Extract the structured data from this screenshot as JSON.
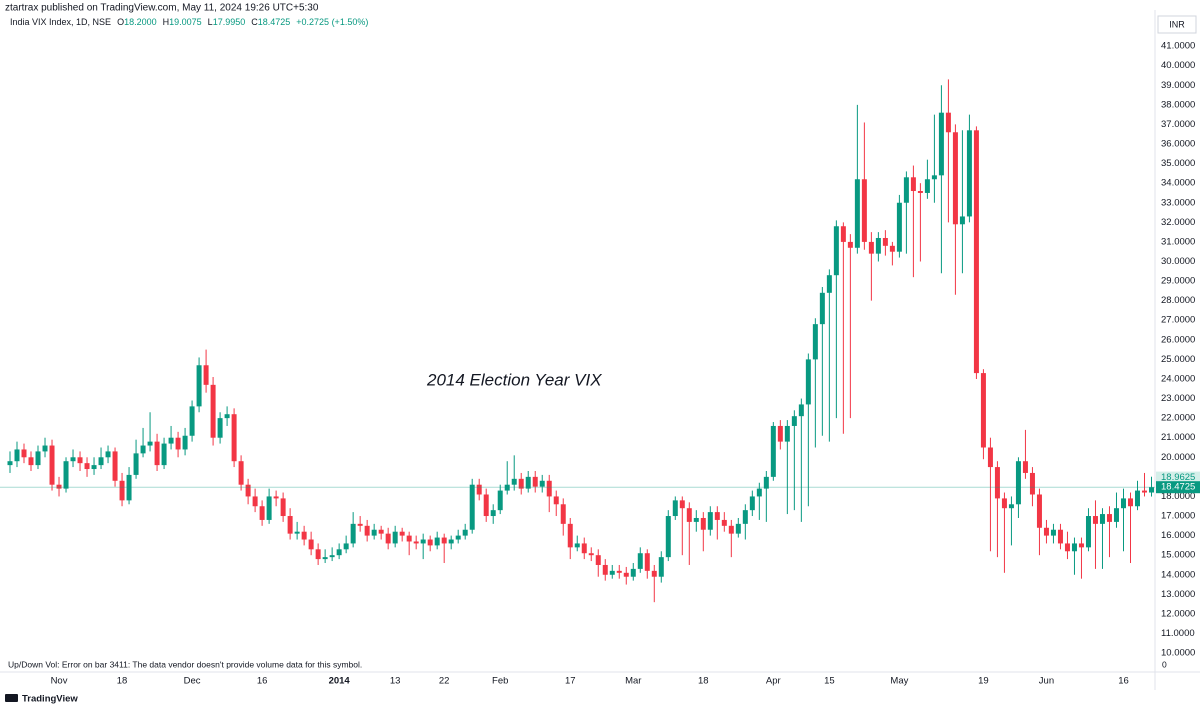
{
  "header": {
    "published": "ztartrax published on TradingView.com, May 11, 2024 19:26 UTC+5:30",
    "symbol": "India VIX Index, 1D, NSE",
    "open_label": "O",
    "open": "18.2000",
    "high_label": "H",
    "high": "19.0075",
    "low_label": "L",
    "low": "17.9950",
    "close_label": "C",
    "close": "18.4725",
    "change": "+0.2725 (+1.50%)",
    "currency": "INR"
  },
  "volume_note": "Up/Down Vol: Error on bar 3411: The data vendor doesn't provide volume data for this symbol.",
  "volume_value": "0",
  "brand": "TradingView",
  "chart_data": {
    "type": "candlestick",
    "annotation": "2014 Election Year VIX",
    "up_color": "#089981",
    "down_color": "#f23645",
    "grid": false,
    "ylim": [
      9.8,
      42.64
    ],
    "yticks": [
      {
        "value": 10,
        "label": "10.0000"
      },
      {
        "value": 11,
        "label": "11.0000"
      },
      {
        "value": 12,
        "label": "12.0000"
      },
      {
        "value": 13,
        "label": "13.0000"
      },
      {
        "value": 14,
        "label": "14.0000"
      },
      {
        "value": 15,
        "label": "15.0000"
      },
      {
        "value": 16,
        "label": "16.0000"
      },
      {
        "value": 17,
        "label": "17.0000"
      },
      {
        "value": 18,
        "label": "18.0000"
      },
      {
        "value": 19,
        "label": "19.0000"
      },
      {
        "value": 20,
        "label": "20.0000"
      },
      {
        "value": 21,
        "label": "21.0000"
      },
      {
        "value": 22,
        "label": "22.0000"
      },
      {
        "value": 23,
        "label": "23.0000"
      },
      {
        "value": 24,
        "label": "24.0000"
      },
      {
        "value": 25,
        "label": "25.0000"
      },
      {
        "value": 26,
        "label": "26.0000"
      },
      {
        "value": 27,
        "label": "27.0000"
      },
      {
        "value": 28,
        "label": "28.0000"
      },
      {
        "value": 29,
        "label": "29.0000"
      },
      {
        "value": 30,
        "label": "30.0000"
      },
      {
        "value": 31,
        "label": "31.0000"
      },
      {
        "value": 32,
        "label": "32.0000"
      },
      {
        "value": 33,
        "label": "33.0000"
      },
      {
        "value": 34,
        "label": "34.0000"
      },
      {
        "value": 35,
        "label": "35.0000"
      },
      {
        "value": 36,
        "label": "36.0000"
      },
      {
        "value": 37,
        "label": "37.0000"
      },
      {
        "value": 38,
        "label": "38.0000"
      },
      {
        "value": 39,
        "label": "39.0000"
      },
      {
        "value": 40,
        "label": "40.0000"
      },
      {
        "value": 41,
        "label": "41.0000"
      }
    ],
    "price_labels": [
      18.9625,
      18.4725
    ],
    "categories": [
      null,
      null,
      null,
      null,
      null,
      null,
      null,
      "Nov",
      null,
      null,
      null,
      null,
      null,
      null,
      null,
      null,
      "18",
      null,
      null,
      null,
      null,
      null,
      null,
      null,
      null,
      null,
      "Dec",
      null,
      null,
      null,
      null,
      null,
      null,
      null,
      null,
      null,
      "16",
      null,
      null,
      null,
      null,
      null,
      null,
      null,
      null,
      null,
      null,
      "2014",
      null,
      null,
      null,
      null,
      null,
      null,
      null,
      "13",
      null,
      null,
      null,
      null,
      null,
      null,
      "22",
      null,
      null,
      null,
      null,
      null,
      null,
      null,
      "Feb",
      null,
      null,
      null,
      null,
      null,
      null,
      null,
      null,
      null,
      "17",
      null,
      null,
      null,
      null,
      null,
      null,
      null,
      null,
      "Mar",
      null,
      null,
      null,
      null,
      null,
      null,
      null,
      null,
      null,
      "18",
      null,
      null,
      null,
      null,
      null,
      null,
      null,
      null,
      null,
      "Apr",
      null,
      null,
      null,
      null,
      null,
      null,
      null,
      "15",
      null,
      null,
      null,
      null,
      null,
      null,
      null,
      null,
      null,
      "May",
      null,
      null,
      null,
      null,
      null,
      null,
      null,
      null,
      null,
      null,
      null,
      "19",
      null,
      null,
      null,
      null,
      null,
      null,
      null,
      null,
      "Jun",
      null,
      null,
      null,
      null,
      null,
      null,
      null,
      null,
      null,
      null,
      "16",
      null,
      null,
      null,
      null
    ],
    "candles": [
      [
        19.6,
        20.3,
        19.2,
        19.8
      ],
      [
        19.8,
        20.8,
        19.5,
        20.4
      ],
      [
        20.4,
        20.7,
        19.7,
        20.0
      ],
      [
        20.0,
        20.3,
        19.3,
        19.6
      ],
      [
        19.6,
        20.6,
        19.4,
        20.3
      ],
      [
        20.3,
        21.0,
        20.0,
        20.6
      ],
      [
        20.6,
        20.9,
        18.3,
        18.6
      ],
      [
        18.6,
        19.0,
        18.0,
        18.4
      ],
      [
        18.4,
        20.0,
        18.2,
        19.8
      ],
      [
        19.8,
        20.4,
        19.5,
        20.0
      ],
      [
        20.0,
        20.3,
        19.3,
        19.7
      ],
      [
        19.7,
        20.0,
        19.0,
        19.4
      ],
      [
        19.4,
        20.0,
        19.1,
        19.6
      ],
      [
        19.6,
        20.5,
        19.4,
        20.0
      ],
      [
        20.0,
        20.6,
        19.7,
        20.3
      ],
      [
        20.3,
        20.5,
        18.5,
        18.8
      ],
      [
        18.8,
        19.2,
        17.5,
        17.8
      ],
      [
        17.8,
        19.5,
        17.6,
        19.1
      ],
      [
        19.1,
        20.9,
        18.9,
        20.2
      ],
      [
        20.2,
        21.5,
        20.0,
        20.6
      ],
      [
        20.6,
        22.3,
        20.3,
        20.8
      ],
      [
        20.8,
        21.2,
        19.3,
        19.6
      ],
      [
        19.6,
        21.0,
        19.4,
        20.7
      ],
      [
        20.7,
        21.6,
        20.4,
        21.0
      ],
      [
        21.0,
        21.3,
        20.0,
        20.4
      ],
      [
        20.4,
        21.5,
        20.1,
        21.1
      ],
      [
        21.1,
        22.9,
        20.8,
        22.6
      ],
      [
        22.6,
        25.1,
        22.3,
        24.7
      ],
      [
        24.7,
        25.5,
        23.3,
        23.7
      ],
      [
        23.7,
        24.1,
        20.6,
        21.0
      ],
      [
        21.0,
        22.3,
        20.7,
        22.0
      ],
      [
        22.0,
        22.6,
        21.6,
        22.2
      ],
      [
        22.2,
        22.5,
        19.5,
        19.8
      ],
      [
        19.8,
        20.1,
        18.3,
        18.6
      ],
      [
        18.6,
        18.9,
        17.6,
        18.0
      ],
      [
        18.0,
        18.4,
        17.2,
        17.5
      ],
      [
        17.5,
        17.8,
        16.5,
        16.8
      ],
      [
        16.8,
        18.4,
        16.6,
        18.0
      ],
      [
        18.0,
        18.3,
        17.5,
        17.9
      ],
      [
        17.9,
        18.2,
        16.7,
        17.0
      ],
      [
        17.0,
        17.4,
        15.8,
        16.1
      ],
      [
        16.1,
        16.7,
        15.8,
        16.2
      ],
      [
        16.2,
        16.5,
        15.5,
        15.8
      ],
      [
        15.8,
        16.2,
        15.0,
        15.3
      ],
      [
        15.3,
        15.6,
        14.5,
        14.8
      ],
      [
        14.8,
        15.3,
        14.6,
        14.9
      ],
      [
        14.9,
        15.4,
        14.7,
        15.0
      ],
      [
        15.0,
        15.6,
        14.8,
        15.3
      ],
      [
        15.3,
        16.0,
        15.1,
        15.6
      ],
      [
        15.6,
        17.2,
        15.4,
        16.6
      ],
      [
        16.6,
        17.0,
        16.2,
        16.5
      ],
      [
        16.5,
        16.8,
        15.7,
        16.0
      ],
      [
        16.0,
        16.6,
        15.8,
        16.3
      ],
      [
        16.3,
        16.5,
        15.8,
        16.1
      ],
      [
        16.1,
        16.4,
        15.3,
        15.6
      ],
      [
        15.6,
        16.5,
        15.4,
        16.2
      ],
      [
        16.2,
        16.4,
        15.7,
        16.0
      ],
      [
        16.0,
        16.2,
        15.0,
        15.7
      ],
      [
        15.7,
        16.0,
        15.3,
        15.6
      ],
      [
        15.6,
        16.1,
        14.8,
        15.8
      ],
      [
        15.8,
        16.0,
        15.2,
        15.5
      ],
      [
        15.5,
        16.2,
        15.3,
        15.9
      ],
      [
        15.9,
        16.1,
        14.6,
        15.6
      ],
      [
        15.6,
        16.0,
        15.3,
        15.8
      ],
      [
        15.8,
        16.3,
        15.6,
        16.0
      ],
      [
        16.0,
        16.6,
        15.8,
        16.3
      ],
      [
        16.3,
        18.9,
        16.1,
        18.6
      ],
      [
        18.6,
        18.9,
        17.8,
        18.1
      ],
      [
        18.1,
        18.4,
        16.7,
        17.0
      ],
      [
        17.0,
        17.6,
        16.6,
        17.3
      ],
      [
        17.3,
        18.6,
        17.1,
        18.3
      ],
      [
        18.3,
        19.8,
        18.1,
        18.6
      ],
      [
        18.6,
        20.1,
        18.3,
        18.9
      ],
      [
        18.9,
        19.2,
        18.1,
        18.4
      ],
      [
        18.4,
        19.3,
        18.2,
        19.0
      ],
      [
        19.0,
        19.3,
        18.2,
        18.5
      ],
      [
        18.5,
        19.1,
        18.2,
        18.8
      ],
      [
        18.8,
        19.1,
        17.2,
        18.0
      ],
      [
        18.0,
        18.3,
        17.0,
        17.6
      ],
      [
        17.6,
        17.9,
        16.0,
        16.6
      ],
      [
        16.6,
        16.9,
        14.8,
        15.4
      ],
      [
        15.4,
        16.0,
        15.2,
        15.6
      ],
      [
        15.6,
        15.9,
        14.8,
        15.1
      ],
      [
        15.1,
        15.4,
        14.7,
        15.0
      ],
      [
        15.0,
        15.3,
        13.9,
        14.5
      ],
      [
        14.5,
        14.8,
        13.7,
        14.0
      ],
      [
        14.0,
        14.5,
        13.8,
        14.2
      ],
      [
        14.2,
        14.5,
        13.8,
        14.1
      ],
      [
        14.1,
        14.4,
        13.5,
        13.9
      ],
      [
        13.9,
        14.6,
        13.7,
        14.3
      ],
      [
        14.3,
        15.4,
        14.1,
        15.1
      ],
      [
        15.1,
        15.3,
        13.8,
        14.2
      ],
      [
        14.2,
        14.5,
        12.6,
        13.9
      ],
      [
        13.9,
        15.2,
        13.6,
        14.9
      ],
      [
        14.9,
        17.3,
        14.7,
        17.0
      ],
      [
        17.0,
        18.0,
        16.8,
        17.8
      ],
      [
        17.8,
        18.0,
        15.0,
        17.4
      ],
      [
        17.4,
        17.7,
        14.5,
        16.7
      ],
      [
        16.7,
        17.3,
        16.2,
        16.9
      ],
      [
        16.9,
        17.2,
        15.2,
        16.3
      ],
      [
        16.3,
        17.5,
        16.0,
        17.2
      ],
      [
        17.2,
        17.5,
        15.8,
        16.8
      ],
      [
        16.8,
        17.2,
        16.2,
        16.5
      ],
      [
        16.5,
        16.8,
        14.9,
        16.1
      ],
      [
        16.1,
        16.9,
        15.9,
        16.6
      ],
      [
        16.6,
        17.6,
        15.8,
        17.3
      ],
      [
        17.3,
        18.3,
        17.0,
        18.0
      ],
      [
        18.0,
        18.7,
        16.8,
        18.4
      ],
      [
        18.4,
        19.3,
        16.7,
        19.0
      ],
      [
        19.0,
        21.8,
        18.8,
        21.6
      ],
      [
        21.6,
        21.9,
        20.4,
        20.8
      ],
      [
        20.8,
        21.9,
        17.1,
        21.6
      ],
      [
        21.6,
        22.4,
        17.3,
        22.1
      ],
      [
        22.1,
        23.0,
        16.7,
        22.7
      ],
      [
        22.7,
        25.3,
        17.5,
        25.0
      ],
      [
        25.0,
        27.1,
        20.5,
        26.8
      ],
      [
        26.8,
        28.7,
        21.1,
        28.4
      ],
      [
        28.4,
        29.6,
        20.8,
        29.3
      ],
      [
        29.3,
        32.1,
        22.0,
        31.8
      ],
      [
        31.8,
        32.0,
        21.2,
        31.0
      ],
      [
        31.0,
        31.4,
        22.0,
        30.7
      ],
      [
        30.7,
        38.0,
        30.4,
        34.2
      ],
      [
        34.2,
        37.1,
        30.6,
        31.0
      ],
      [
        31.0,
        31.5,
        28.0,
        30.4
      ],
      [
        30.4,
        31.5,
        30.0,
        31.2
      ],
      [
        31.2,
        31.6,
        30.3,
        30.8
      ],
      [
        30.8,
        31.0,
        29.8,
        30.5
      ],
      [
        30.5,
        33.4,
        30.2,
        33.0
      ],
      [
        33.0,
        34.6,
        30.4,
        34.3
      ],
      [
        34.3,
        34.9,
        29.2,
        33.6
      ],
      [
        33.6,
        34.0,
        30.0,
        33.5
      ],
      [
        33.5,
        35.2,
        33.2,
        34.2
      ],
      [
        34.2,
        37.5,
        33.0,
        34.4
      ],
      [
        34.4,
        39.0,
        29.4,
        37.6
      ],
      [
        37.6,
        39.3,
        32.0,
        36.6
      ],
      [
        36.6,
        37.0,
        28.3,
        31.9
      ],
      [
        31.9,
        36.7,
        29.4,
        32.3
      ],
      [
        32.3,
        37.5,
        32.0,
        36.7
      ],
      [
        36.7,
        36.9,
        24.0,
        24.3
      ],
      [
        24.3,
        24.5,
        19.9,
        20.5
      ],
      [
        20.5,
        21.0,
        15.2,
        19.5
      ],
      [
        19.5,
        19.8,
        14.9,
        17.9
      ],
      [
        17.9,
        18.2,
        14.1,
        17.4
      ],
      [
        17.4,
        18.0,
        15.5,
        17.6
      ],
      [
        17.6,
        20.0,
        16.9,
        19.8
      ],
      [
        19.8,
        21.4,
        18.9,
        19.2
      ],
      [
        19.2,
        19.5,
        17.5,
        18.1
      ],
      [
        18.1,
        18.4,
        15.0,
        16.4
      ],
      [
        16.4,
        16.8,
        15.6,
        16.0
      ],
      [
        16.0,
        16.6,
        15.6,
        16.3
      ],
      [
        16.3,
        16.6,
        15.3,
        15.6
      ],
      [
        15.6,
        16.2,
        14.8,
        15.2
      ],
      [
        15.2,
        15.9,
        14.0,
        15.6
      ],
      [
        15.6,
        15.9,
        13.8,
        15.4
      ],
      [
        15.4,
        17.4,
        15.2,
        17.0
      ],
      [
        17.0,
        17.8,
        14.3,
        16.6
      ],
      [
        16.6,
        17.4,
        14.3,
        17.1
      ],
      [
        17.1,
        17.5,
        14.9,
        16.7
      ],
      [
        16.7,
        18.2,
        16.4,
        17.4
      ],
      [
        17.4,
        18.4,
        15.2,
        17.9
      ],
      [
        17.9,
        18.2,
        14.6,
        17.5
      ],
      [
        17.5,
        18.8,
        17.3,
        18.3
      ],
      [
        18.3,
        19.2,
        18.0,
        18.2
      ],
      [
        18.2,
        19.0075,
        17.995,
        18.4725
      ]
    ]
  }
}
